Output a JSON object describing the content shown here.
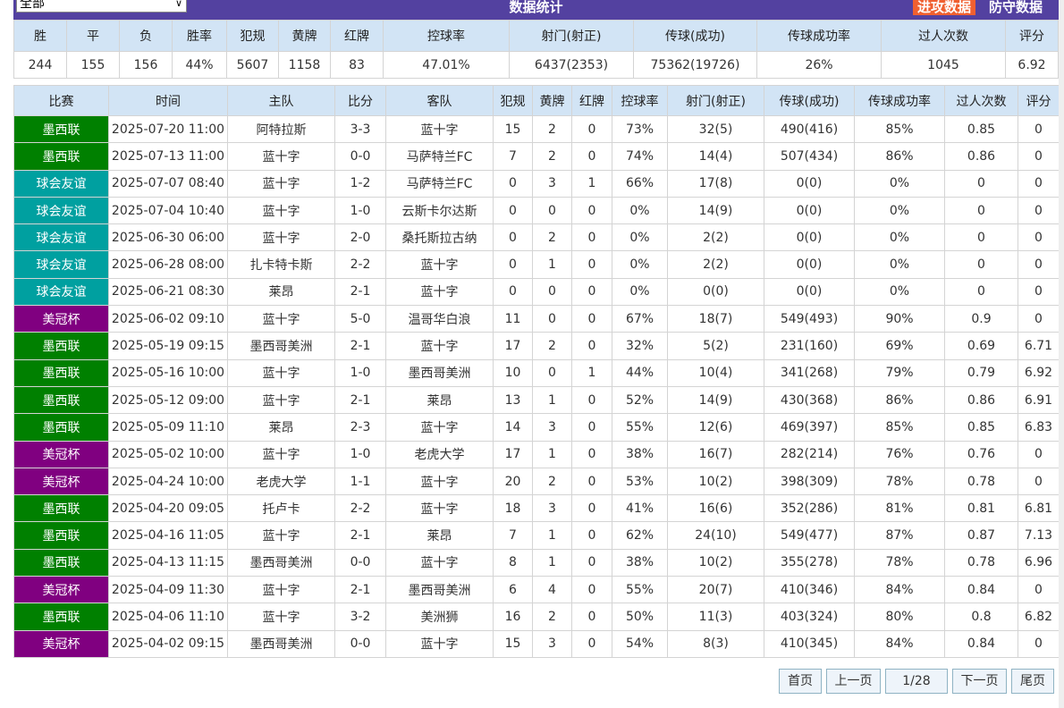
{
  "filter": {
    "selected": "全部"
  },
  "header": {
    "title": "数据统计",
    "attack_tab": "进攻数据",
    "defense_tab": "防守数据"
  },
  "colors": {
    "accent_bar": "#5341a0",
    "attack_tab": "#f06030",
    "墨西联": "#008000",
    "球会友谊": "#00a0a0",
    "美冠杯": "#800080",
    "header_bg": "#d2e4f5"
  },
  "summary": {
    "headers": [
      "胜",
      "平",
      "负",
      "胜率",
      "犯规",
      "黄牌",
      "红牌",
      "控球率",
      "射门(射正)",
      "传球(成功)",
      "传球成功率",
      "过人次数",
      "评分"
    ],
    "values": [
      "244",
      "155",
      "156",
      "44%",
      "5607",
      "1158",
      "83",
      "47.01%",
      "6437(2353)",
      "75362(19726)",
      "26%",
      "1045",
      "6.92"
    ]
  },
  "matches": {
    "headers": [
      "比赛",
      "时间",
      "主队",
      "比分",
      "客队",
      "犯规",
      "黄牌",
      "红牌",
      "控球率",
      "射门(射正)",
      "传球(成功)",
      "传球成功率",
      "过人次数",
      "评分"
    ],
    "rows": [
      [
        "墨西联",
        "2025-07-20 11:00",
        "阿特拉斯",
        "3-3",
        "蓝十字",
        "15",
        "2",
        "0",
        "73%",
        "32(5)",
        "490(416)",
        "85%",
        "0.85",
        "0"
      ],
      [
        "墨西联",
        "2025-07-13 11:00",
        "蓝十字",
        "0-0",
        "马萨特兰FC",
        "7",
        "2",
        "0",
        "74%",
        "14(4)",
        "507(434)",
        "86%",
        "0.86",
        "0"
      ],
      [
        "球会友谊",
        "2025-07-07 08:40",
        "蓝十字",
        "1-2",
        "马萨特兰FC",
        "0",
        "3",
        "1",
        "66%",
        "17(8)",
        "0(0)",
        "0%",
        "0",
        "0"
      ],
      [
        "球会友谊",
        "2025-07-04 10:40",
        "蓝十字",
        "1-0",
        "云斯卡尔达斯",
        "0",
        "0",
        "0",
        "0%",
        "14(9)",
        "0(0)",
        "0%",
        "0",
        "0"
      ],
      [
        "球会友谊",
        "2025-06-30 06:00",
        "蓝十字",
        "2-0",
        "桑托斯拉古纳",
        "0",
        "2",
        "0",
        "0%",
        "2(2)",
        "0(0)",
        "0%",
        "0",
        "0"
      ],
      [
        "球会友谊",
        "2025-06-28 08:00",
        "扎卡特卡斯",
        "2-2",
        "蓝十字",
        "0",
        "1",
        "0",
        "0%",
        "2(2)",
        "0(0)",
        "0%",
        "0",
        "0"
      ],
      [
        "球会友谊",
        "2025-06-21 08:30",
        "莱昂",
        "2-1",
        "蓝十字",
        "0",
        "0",
        "0",
        "0%",
        "0(0)",
        "0(0)",
        "0%",
        "0",
        "0"
      ],
      [
        "美冠杯",
        "2025-06-02 09:10",
        "蓝十字",
        "5-0",
        "温哥华白浪",
        "11",
        "0",
        "0",
        "67%",
        "18(7)",
        "549(493)",
        "90%",
        "0.9",
        "0"
      ],
      [
        "墨西联",
        "2025-05-19 09:15",
        "墨西哥美洲",
        "2-1",
        "蓝十字",
        "17",
        "2",
        "0",
        "32%",
        "5(2)",
        "231(160)",
        "69%",
        "0.69",
        "6.71"
      ],
      [
        "墨西联",
        "2025-05-16 10:00",
        "蓝十字",
        "1-0",
        "墨西哥美洲",
        "10",
        "0",
        "1",
        "44%",
        "10(4)",
        "341(268)",
        "79%",
        "0.79",
        "6.92"
      ],
      [
        "墨西联",
        "2025-05-12 09:00",
        "蓝十字",
        "2-1",
        "莱昂",
        "13",
        "1",
        "0",
        "52%",
        "14(9)",
        "430(368)",
        "86%",
        "0.86",
        "6.91"
      ],
      [
        "墨西联",
        "2025-05-09 11:10",
        "莱昂",
        "2-3",
        "蓝十字",
        "14",
        "3",
        "0",
        "55%",
        "12(6)",
        "469(397)",
        "85%",
        "0.85",
        "6.83"
      ],
      [
        "美冠杯",
        "2025-05-02 10:00",
        "蓝十字",
        "1-0",
        "老虎大学",
        "17",
        "1",
        "0",
        "38%",
        "16(7)",
        "282(214)",
        "76%",
        "0.76",
        "0"
      ],
      [
        "美冠杯",
        "2025-04-24 10:00",
        "老虎大学",
        "1-1",
        "蓝十字",
        "20",
        "2",
        "0",
        "53%",
        "10(2)",
        "398(309)",
        "78%",
        "0.78",
        "0"
      ],
      [
        "墨西联",
        "2025-04-20 09:05",
        "托卢卡",
        "2-2",
        "蓝十字",
        "18",
        "3",
        "0",
        "41%",
        "16(6)",
        "352(286)",
        "81%",
        "0.81",
        "6.81"
      ],
      [
        "墨西联",
        "2025-04-16 11:05",
        "蓝十字",
        "2-1",
        "莱昂",
        "7",
        "1",
        "0",
        "62%",
        "24(10)",
        "549(477)",
        "87%",
        "0.87",
        "7.13"
      ],
      [
        "墨西联",
        "2025-04-13 11:15",
        "墨西哥美洲",
        "0-0",
        "蓝十字",
        "8",
        "1",
        "0",
        "38%",
        "10(2)",
        "355(278)",
        "78%",
        "0.78",
        "6.96"
      ],
      [
        "美冠杯",
        "2025-04-09 11:30",
        "蓝十字",
        "2-1",
        "墨西哥美洲",
        "6",
        "4",
        "0",
        "55%",
        "20(7)",
        "410(346)",
        "84%",
        "0.84",
        "0"
      ],
      [
        "墨西联",
        "2025-04-06 11:10",
        "蓝十字",
        "3-2",
        "美洲狮",
        "16",
        "2",
        "0",
        "50%",
        "11(3)",
        "403(324)",
        "80%",
        "0.8",
        "6.82"
      ],
      [
        "美冠杯",
        "2025-04-02 09:15",
        "墨西哥美洲",
        "0-0",
        "蓝十字",
        "15",
        "3",
        "0",
        "54%",
        "8(3)",
        "410(345)",
        "84%",
        "0.84",
        "0"
      ]
    ]
  },
  "pager": {
    "first": "首页",
    "prev": "上一页",
    "current": "1/28",
    "next": "下一页",
    "last": "尾页"
  }
}
